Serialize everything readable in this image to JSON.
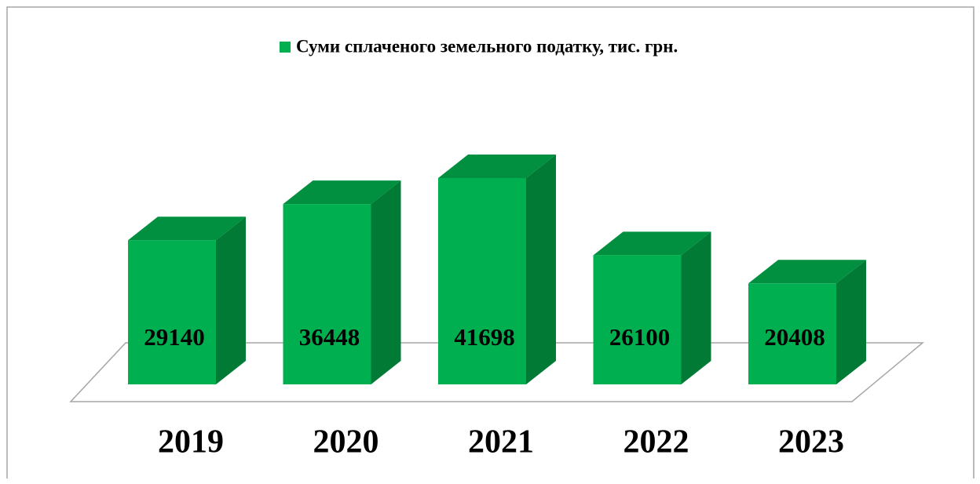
{
  "chart_data": {
    "type": "bar3d",
    "series": [
      {
        "name": "Суми сплаченого земельного податку, тис. грн.",
        "color": "#00b050",
        "values": [
          29140,
          36448,
          41698,
          26100,
          20408
        ]
      }
    ],
    "categories": [
      "2019",
      "2020",
      "2021",
      "2022",
      "2023"
    ],
    "legend": "top"
  }
}
